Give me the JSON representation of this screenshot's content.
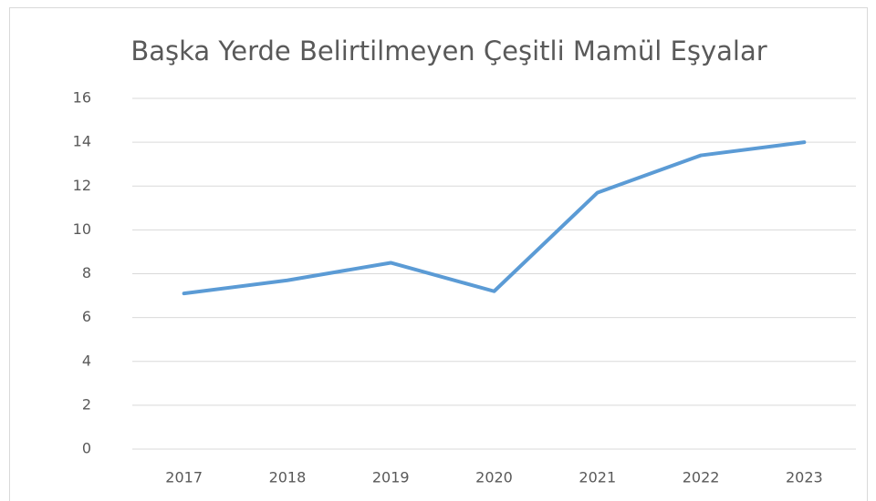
{
  "chart_data": {
    "type": "line",
    "title": "Başka Yerde Belirtilmeyen Çeşitli Mamül Eşyalar",
    "categories": [
      "2017",
      "2018",
      "2019",
      "2020",
      "2021",
      "2022",
      "2023"
    ],
    "values": [
      7.1,
      7.7,
      8.5,
      7.2,
      11.7,
      13.4,
      14.0
    ],
    "color": "#5b9bd5",
    "ylim": [
      0,
      16
    ],
    "yticks": [
      0,
      2,
      4,
      6,
      8,
      10,
      12,
      14,
      16
    ],
    "grid": true
  }
}
